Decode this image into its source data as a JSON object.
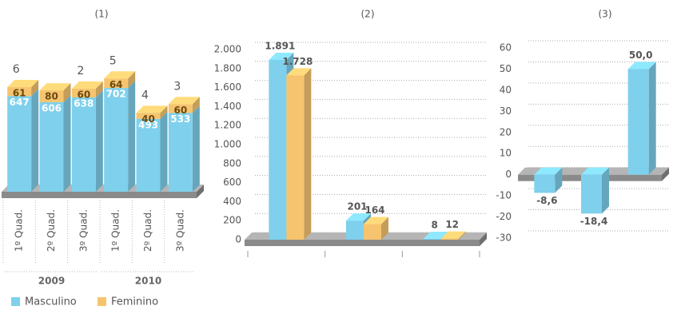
{
  "chart_data": [
    {
      "type": "bar",
      "stacked": true,
      "title": "(1)",
      "categories": [
        "1º Quad.",
        "2º Quad.",
        "3º Quad.",
        "1º Quad.",
        "2º Quad.",
        "3º Quad."
      ],
      "x_groups": [
        "2009",
        "2010"
      ],
      "top_labels": [
        "6",
        null,
        "2",
        "5",
        "4",
        "3"
      ],
      "series": [
        {
          "name": "Masculino",
          "color": "#7fd0ec",
          "values": [
            647,
            606,
            638,
            702,
            493,
            533
          ]
        },
        {
          "name": "Feminino",
          "color": "#f6c46e",
          "values": [
            61,
            80,
            60,
            64,
            40,
            60
          ]
        }
      ]
    },
    {
      "type": "bar",
      "title": "(2)",
      "categories": [
        null,
        null,
        null
      ],
      "series": [
        {
          "color": "#7fd0ec",
          "values": [
            1891,
            201,
            8
          ],
          "value_labels": [
            "1.891",
            "201",
            "8"
          ]
        },
        {
          "color": "#f6c46e",
          "values": [
            1728,
            164,
            12
          ],
          "value_labels": [
            "1.728",
            "164",
            "12"
          ]
        }
      ],
      "ylim": [
        0,
        2000
      ],
      "yticks": [
        0,
        200,
        400,
        600,
        800,
        {
          "value": 1000,
          "label": "1.000"
        },
        {
          "value": 1200,
          "label": "1.200"
        },
        {
          "value": 1400,
          "label": "1.400"
        },
        {
          "value": 1600,
          "label": "1.600"
        },
        {
          "value": 1800,
          "label": "1.800"
        },
        {
          "value": 2000,
          "label": "2.000"
        }
      ],
      "grid": true
    },
    {
      "type": "bar",
      "title": "(3)",
      "categories": [
        null,
        null,
        null
      ],
      "series": [
        {
          "color": "#7fd0ec",
          "values": [
            -8.6,
            -18.4,
            50.0
          ],
          "value_labels": [
            "-8,6",
            "-18,4",
            "50,0"
          ]
        }
      ],
      "ylim": [
        -30,
        60
      ],
      "yticks": [
        -30,
        -20,
        -10,
        0,
        10,
        20,
        30,
        40,
        50,
        60
      ],
      "grid": true
    }
  ]
}
